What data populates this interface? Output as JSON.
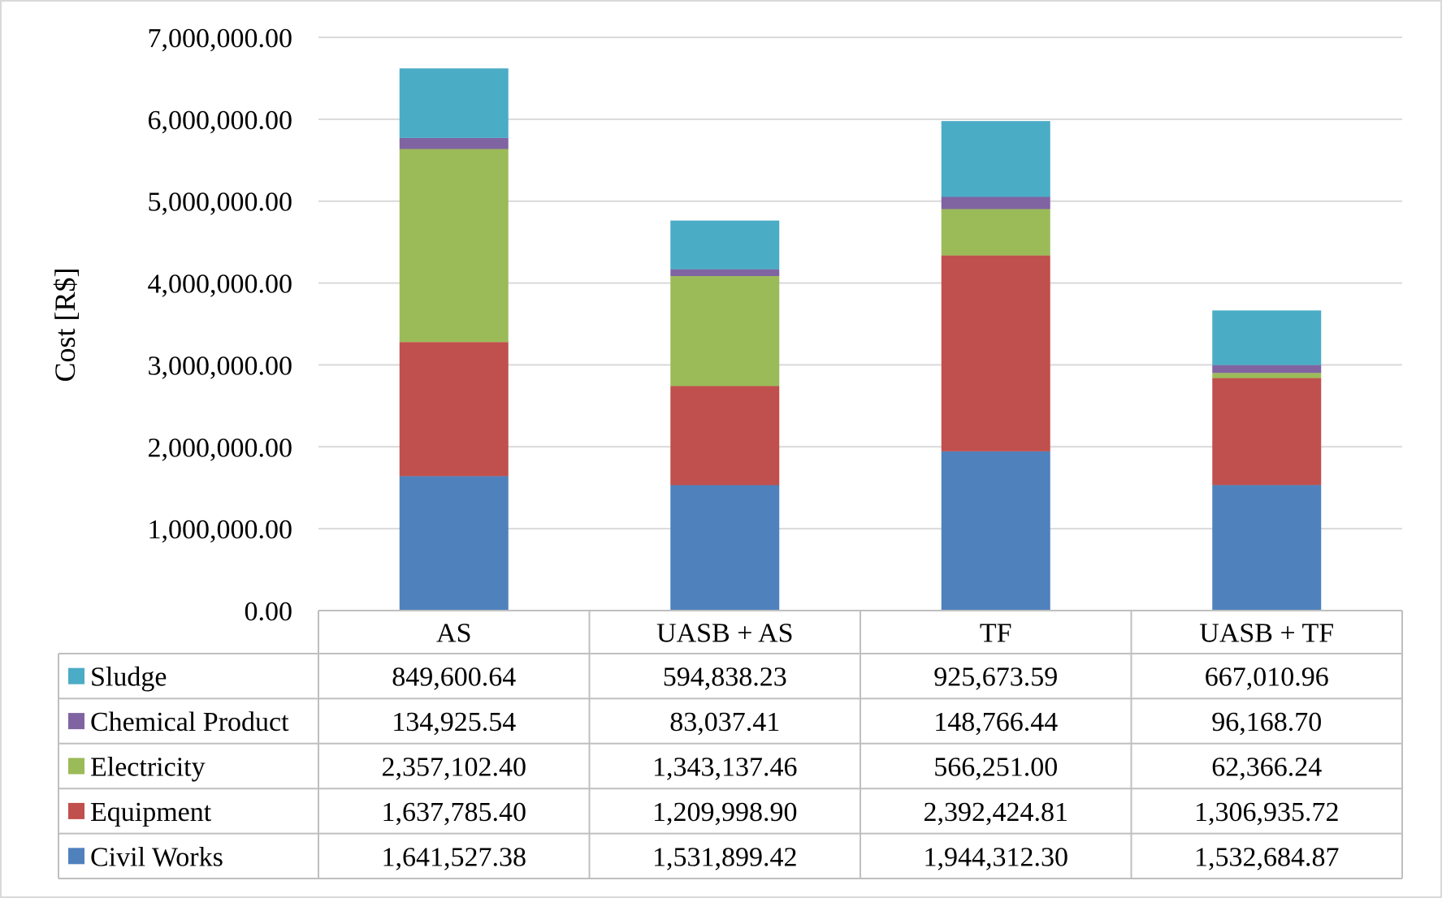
{
  "chart_data": {
    "type": "bar",
    "stacked": true,
    "ylabel": "Cost [R$]",
    "ylim": [
      0,
      7000000
    ],
    "yticks": [
      0,
      1000000,
      2000000,
      3000000,
      4000000,
      5000000,
      6000000,
      7000000
    ],
    "ytick_labels": [
      "0.00",
      "1,000,000.00",
      "2,000,000.00",
      "3,000,000.00",
      "4,000,000.00",
      "5,000,000.00",
      "6,000,000.00",
      "7,000,000.00"
    ],
    "grid": true,
    "legend": "data-table",
    "categories": [
      "AS",
      "UASB + AS",
      "TF",
      "UASB + TF"
    ],
    "series": [
      {
        "name": "Civil Works",
        "color": "#4f81bd",
        "values": [
          1641527.38,
          1531899.42,
          1944312.3,
          1532684.87
        ],
        "labels": [
          "1,641,527.38",
          "1,531,899.42",
          "1,944,312.30",
          "1,532,684.87"
        ]
      },
      {
        "name": "Equipment",
        "color": "#c0504d",
        "values": [
          1637785.4,
          1209998.9,
          2392424.81,
          1306935.72
        ],
        "labels": [
          "1,637,785.40",
          "1,209,998.90",
          "2,392,424.81",
          "1,306,935.72"
        ]
      },
      {
        "name": "Electricity",
        "color": "#9bbb59",
        "values": [
          2357102.4,
          1343137.46,
          566251.0,
          62366.24
        ],
        "labels": [
          "2,357,102.40",
          "1,343,137.46",
          "566,251.00",
          "62,366.24"
        ]
      },
      {
        "name": "Chemical Product",
        "color": "#8064a2",
        "values": [
          134925.54,
          83037.41,
          148766.44,
          96168.7
        ],
        "labels": [
          "134,925.54",
          "83,037.41",
          "148,766.44",
          "96,168.70"
        ]
      },
      {
        "name": "Sludge",
        "color": "#4bacc6",
        "values": [
          849600.64,
          594838.23,
          925673.59,
          667010.96
        ],
        "labels": [
          "849,600.64",
          "594,838.23",
          "925,673.59",
          "667,010.96"
        ]
      }
    ]
  }
}
